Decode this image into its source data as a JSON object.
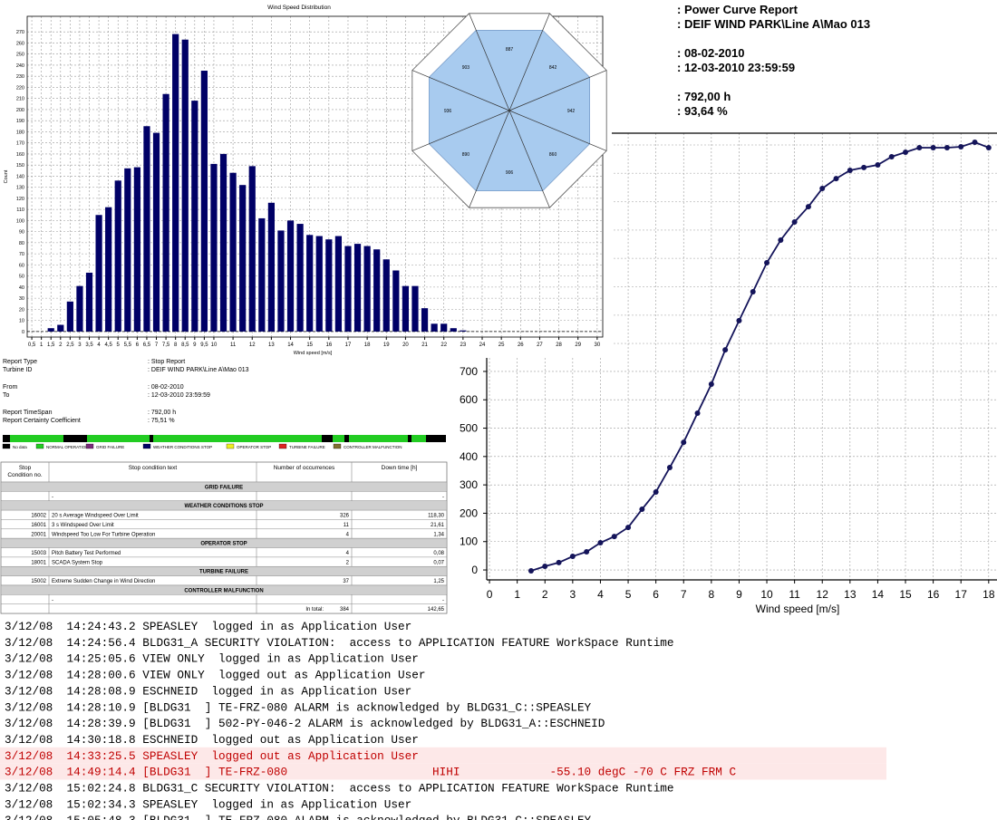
{
  "chart_data": [
    {
      "type": "bar",
      "title": "Wind Speed Distribution",
      "x_label": "Wind speed [m/s]",
      "y_label": "Count",
      "color": "#000066",
      "x": [
        0.5,
        1,
        1.5,
        2,
        2.5,
        3,
        3.5,
        4,
        4.5,
        5,
        5.5,
        6,
        6.5,
        7,
        7.5,
        8,
        8.5,
        9,
        9.5,
        10,
        10.5,
        11,
        11.5,
        12,
        12.5,
        13,
        13.5,
        14,
        14.5,
        15,
        15.5,
        16,
        16.5,
        17,
        17.5,
        18,
        18.5,
        19,
        19.5,
        20,
        20.5,
        21,
        21.5,
        22,
        22.5,
        23,
        23.5,
        24,
        24.5,
        25,
        25.5,
        26,
        26.5,
        27,
        27.5,
        28,
        28.5,
        29,
        29.5,
        30
      ],
      "values": [
        0,
        0,
        3,
        6,
        27,
        41,
        53,
        105,
        112,
        136,
        147,
        148,
        185,
        179,
        214,
        268,
        263,
        208,
        235,
        151,
        160,
        143,
        132,
        149,
        102,
        116,
        91,
        100,
        97,
        87,
        86,
        83,
        86,
        77,
        79,
        77,
        74,
        65,
        55,
        41,
        41,
        21,
        7,
        7,
        3,
        1,
        0,
        0,
        0,
        0,
        0,
        0,
        0,
        0,
        0,
        0,
        0,
        0,
        0,
        0
      ],
      "xlim": [
        0.26,
        30.29
      ],
      "ylim": [
        -5,
        284
      ],
      "xticks": [
        {
          "value": 0.5,
          "label": "0,5"
        },
        1,
        {
          "value": 1.5,
          "label": "1,5"
        },
        2,
        {
          "value": 2.5,
          "label": "2,5"
        },
        3,
        {
          "value": 3.5,
          "label": "3,5"
        },
        4,
        {
          "value": 4.5,
          "label": "4,5"
        },
        5,
        {
          "value": 5.5,
          "label": "5,5"
        },
        6,
        {
          "value": 6.5,
          "label": "6,5"
        },
        7,
        {
          "value": 7.5,
          "label": "7,5"
        },
        8,
        {
          "value": 8.5,
          "label": "8,5"
        },
        9,
        {
          "value": 9.5,
          "label": "9,5"
        },
        10,
        11,
        12,
        13,
        14,
        15,
        16,
        17,
        18,
        19,
        20,
        21,
        22,
        23,
        24,
        25,
        26,
        27,
        28,
        29,
        30
      ],
      "yticks": [
        0,
        10,
        20,
        30,
        40,
        50,
        60,
        70,
        80,
        90,
        100,
        110,
        120,
        130,
        140,
        150,
        160,
        170,
        180,
        190,
        200,
        210,
        220,
        230,
        240,
        250,
        260,
        270
      ],
      "grid": true
    },
    {
      "type": "line",
      "x_label": "Wind speed [m/s]",
      "color": "#14145a",
      "x": [
        1.5,
        2,
        2.5,
        3,
        3.5,
        4,
        4.5,
        5,
        5.5,
        6,
        6.5,
        7,
        7.5,
        8,
        8.5,
        9,
        9.5,
        10,
        10.5,
        11,
        11.5,
        12,
        12.5,
        13,
        13.5,
        14,
        14.5,
        15,
        15.5,
        16,
        16.5,
        17,
        17.5,
        18
      ],
      "values": [
        -3,
        13,
        26,
        48,
        64,
        96,
        118,
        150,
        214,
        275,
        361,
        450,
        553,
        655,
        776,
        879,
        981,
        1083,
        1163,
        1227,
        1281,
        1345,
        1380,
        1409,
        1419,
        1428,
        1457,
        1473,
        1489,
        1489,
        1489,
        1492,
        1508,
        1489
      ],
      "xlim": [
        -0.1,
        18.3
      ],
      "ylim": [
        -35,
        1540
      ],
      "xticks": [
        0,
        1,
        2,
        3,
        4,
        5,
        6,
        7,
        8,
        9,
        10,
        11,
        12,
        13,
        14,
        15,
        16,
        17,
        18
      ],
      "yticks": [
        0,
        100,
        200,
        300,
        400,
        500,
        600,
        700
      ],
      "grid": true
    }
  ],
  "wind_rose": {
    "sectors": [
      "887",
      "842",
      "942",
      "860",
      "906",
      "890",
      "936",
      "903"
    ]
  },
  "power_report": {
    "lines": [
      ": Power Curve Report",
      ": DEIF WIND PARK\\Line A\\Mao 013",
      ": 08-02-2010",
      ": 12-03-2010 23:59:59",
      ": 792,00 h",
      ": 93,64 %"
    ]
  },
  "stop_report": {
    "fields": [
      {
        "label": "Report Type",
        "value": ": Stop Report"
      },
      {
        "label": "Turbine ID",
        "value": ": DEIF WIND PARK\\Line A\\Mao 013"
      },
      {
        "label": "From",
        "value": ": 08-02-2010"
      },
      {
        "label": "To",
        "value": ": 12-03-2010 23:59:59"
      },
      {
        "label": "Report TimeSpan",
        "value": ": 792,00 h"
      },
      {
        "label": "Report Certainty Coefficient",
        "value": ": 75,51 %"
      }
    ]
  },
  "legend": [
    {
      "label": "No data",
      "color": "#000000"
    },
    {
      "label": "NORMAL OPERATION",
      "color": "#22cc22"
    },
    {
      "label": "GRID FAILURE",
      "color": "#7a2a7a"
    },
    {
      "label": "WEATHER CONDITIONS STOP",
      "color": "#000066"
    },
    {
      "label": "OPERATOR STOP",
      "color": "#eeee22"
    },
    {
      "label": "TURBINE FAILURE",
      "color": "#dd2222"
    },
    {
      "label": "CONTROLLER MALFUNCTION",
      "color": "#807030"
    }
  ],
  "table": {
    "headers": [
      [
        "Stop",
        "Condition no."
      ],
      [
        "Stop condition text"
      ],
      [
        "Number of occurrences"
      ],
      [
        "Down time [h]"
      ]
    ],
    "sections": [
      {
        "title": "GRID FAILURE",
        "rows": [
          {
            "text": "-",
            "downtime": "-"
          }
        ]
      },
      {
        "title": "WEATHER CONDITIONS STOP",
        "rows": [
          {
            "code": "16002",
            "text": "20 s Average Windspeed Over Limit",
            "occurrences": "326",
            "downtime": "118,30"
          },
          {
            "code": "16001",
            "text": "3 s Windspeed Over Limit",
            "occurrences": "11",
            "downtime": "21,61"
          },
          {
            "code": "20001",
            "text": "Windspeed Too Low For Turbine Operation",
            "occurrences": "4",
            "downtime": "1,34"
          }
        ]
      },
      {
        "title": "OPERATOR STOP",
        "rows": [
          {
            "code": "15003",
            "text": "Pitch Battery Test Performed",
            "occurrences": "4",
            "downtime": "0,08"
          },
          {
            "code": "18001",
            "text": "SCADA System Stop",
            "occurrences": "2",
            "downtime": "0,07"
          }
        ]
      },
      {
        "title": "TURBINE FAILURE",
        "rows": [
          {
            "code": "15002",
            "text": "Extreme Sudden Change in Wind Direction",
            "occurrences": "37",
            "downtime": "1,25"
          }
        ]
      },
      {
        "title": "CONTROLLER MALFUNCTION",
        "rows": [
          {
            "text": "-",
            "downtime": "-"
          }
        ]
      }
    ],
    "total": {
      "label": "In total:",
      "occurrences": "384",
      "downtime": "142,65"
    }
  },
  "log": {
    "lines": [
      {
        "text": "3/12/08  14:24:43.2 SPEASLEY  logged in as Application User"
      },
      {
        "text": "3/12/08  14:24:56.4 BLDG31_A SECURITY VIOLATION:  access to APPLICATION FEATURE WorkSpace Runtime"
      },
      {
        "text": "3/12/08  14:25:05.6 VIEW ONLY  logged in as Application User"
      },
      {
        "text": "3/12/08  14:28:00.6 VIEW ONLY  logged out as Application User"
      },
      {
        "text": "3/12/08  14:28:08.9 ESCHNEID  logged in as Application User"
      },
      {
        "text": "3/12/08  14:28:10.9 [BLDG31  ] TE-FRZ-080 ALARM is acknowledged by BLDG31_C::SPEASLEY"
      },
      {
        "text": "3/12/08  14:28:39.9 [BLDG31  ] 502-PY-046-2 ALARM is acknowledged by BLDG31_A::ESCHNEID"
      },
      {
        "text": "3/12/08  14:30:18.8 ESCHNEID  logged out as Application User"
      },
      {
        "text": "3/12/08  14:33:25.5 SPEASLEY  logged out as Application User",
        "alarm": true
      },
      {
        "text": "3/12/08  14:49:14.4 [BLDG31  ] TE-FRZ-080                     HIHI             -55.10 degC -70 C FRZ FRM C",
        "alarm": true
      },
      {
        "text": "3/12/08  15:02:24.8 BLDG31_C SECURITY VIOLATION:  access to APPLICATION FEATURE WorkSpace Runtime"
      },
      {
        "text": "3/12/08  15:02:34.3 SPEASLEY  logged in as Application User"
      },
      {
        "text": "3/12/08  15:05:48.3 [BLDG31  ] TE-FRZ-080 ALARM is acknowledged by BLDG31_C::SPEASLEY"
      }
    ]
  }
}
